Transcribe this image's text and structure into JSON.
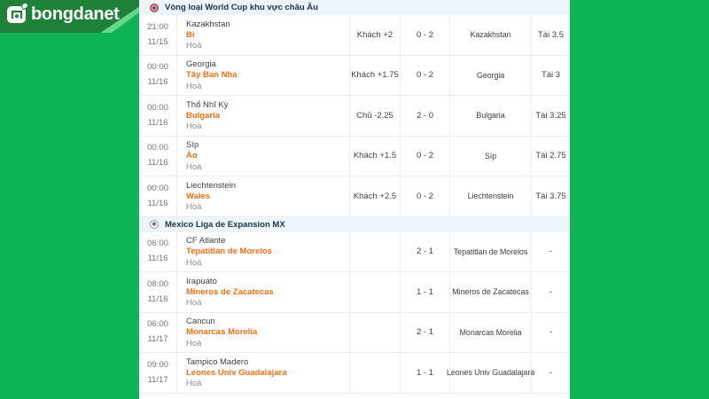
{
  "logo": {
    "text": "bongdanet",
    "icon": "bongdanet-logo-icon"
  },
  "colors": {
    "background_green": "#0db355",
    "banner_green": "#1f8038",
    "stripe_green": "#67d88a",
    "accent_orange": "#f56f15",
    "header_bar_bg": "#edf4fa",
    "row_border": "#ededed",
    "panel_bg": "#ffffff"
  },
  "sections": [
    {
      "title": "Vòng loại World Cup khu vực châu Âu",
      "icon": "uefa-competition-icon",
      "matches": [
        {
          "time": "21:00",
          "date": "11/15",
          "home": "Kazakhstan",
          "away": "Bỉ",
          "draw": "Hoà",
          "handicap": "Khách +2",
          "score": "0 - 2",
          "handicap_result": "Kazakhstan",
          "total": "Tài 3.5"
        },
        {
          "time": "00:00",
          "date": "11/16",
          "home": "Georgia",
          "away": "Tây Ban Nha",
          "draw": "Hoà",
          "handicap": "Khách +1.75",
          "score": "0 - 2",
          "handicap_result": "Georgia",
          "total": "Tài 3"
        },
        {
          "time": "00:00",
          "date": "11/16",
          "home": "Thổ Nhĩ Kỳ",
          "away": "Bulgaria",
          "draw": "Hoà",
          "handicap": "Chủ -2.25",
          "score": "2 - 0",
          "handicap_result": "Bulgaria",
          "total": "Tài 3.25"
        },
        {
          "time": "00:00",
          "date": "11/16",
          "home": "Síp",
          "away": "Áo",
          "draw": "Hoà",
          "handicap": "Khách +1.5",
          "score": "0 - 2",
          "handicap_result": "Síp",
          "total": "Tài 2.75"
        },
        {
          "time": "00:00",
          "date": "11/16",
          "home": "Liechtenstein",
          "away": "Wales",
          "draw": "Hoà",
          "handicap": "Khách +2.5",
          "score": "0 - 2",
          "handicap_result": "Liechtenstein",
          "total": "Tài 3.75"
        }
      ]
    },
    {
      "title": "Mexico Liga de Expansion MX",
      "icon": "liga-expansion-mx-icon",
      "matches": [
        {
          "time": "06:00",
          "date": "11/16",
          "home": "CF Atlante",
          "away": "Tepatitlan de Morelos",
          "draw": "Hoà",
          "handicap": "",
          "score": "2 - 1",
          "handicap_result": "Tepatitlan de Morelos",
          "total": "-"
        },
        {
          "time": "08:00",
          "date": "11/16",
          "home": "Irapuato",
          "away": "Mineros de Zacatecas",
          "draw": "Hoà",
          "handicap": "",
          "score": "1 - 1",
          "handicap_result": "Mineros de Zacatecas",
          "total": "-"
        },
        {
          "time": "06:00",
          "date": "11/17",
          "home": "Cancun",
          "away": "Monarcas Morelia",
          "draw": "Hoà",
          "handicap": "",
          "score": "2 - 1",
          "handicap_result": "Monarcas Morelia",
          "total": "-"
        },
        {
          "time": "09:00",
          "date": "11/17",
          "home": "Tampico Madero",
          "away": "Leones Univ Guadalajara",
          "draw": "Hoà",
          "handicap": "",
          "score": "1 - 1",
          "handicap_result": "Leones Univ Guadalajara",
          "total": "-"
        }
      ]
    }
  ]
}
